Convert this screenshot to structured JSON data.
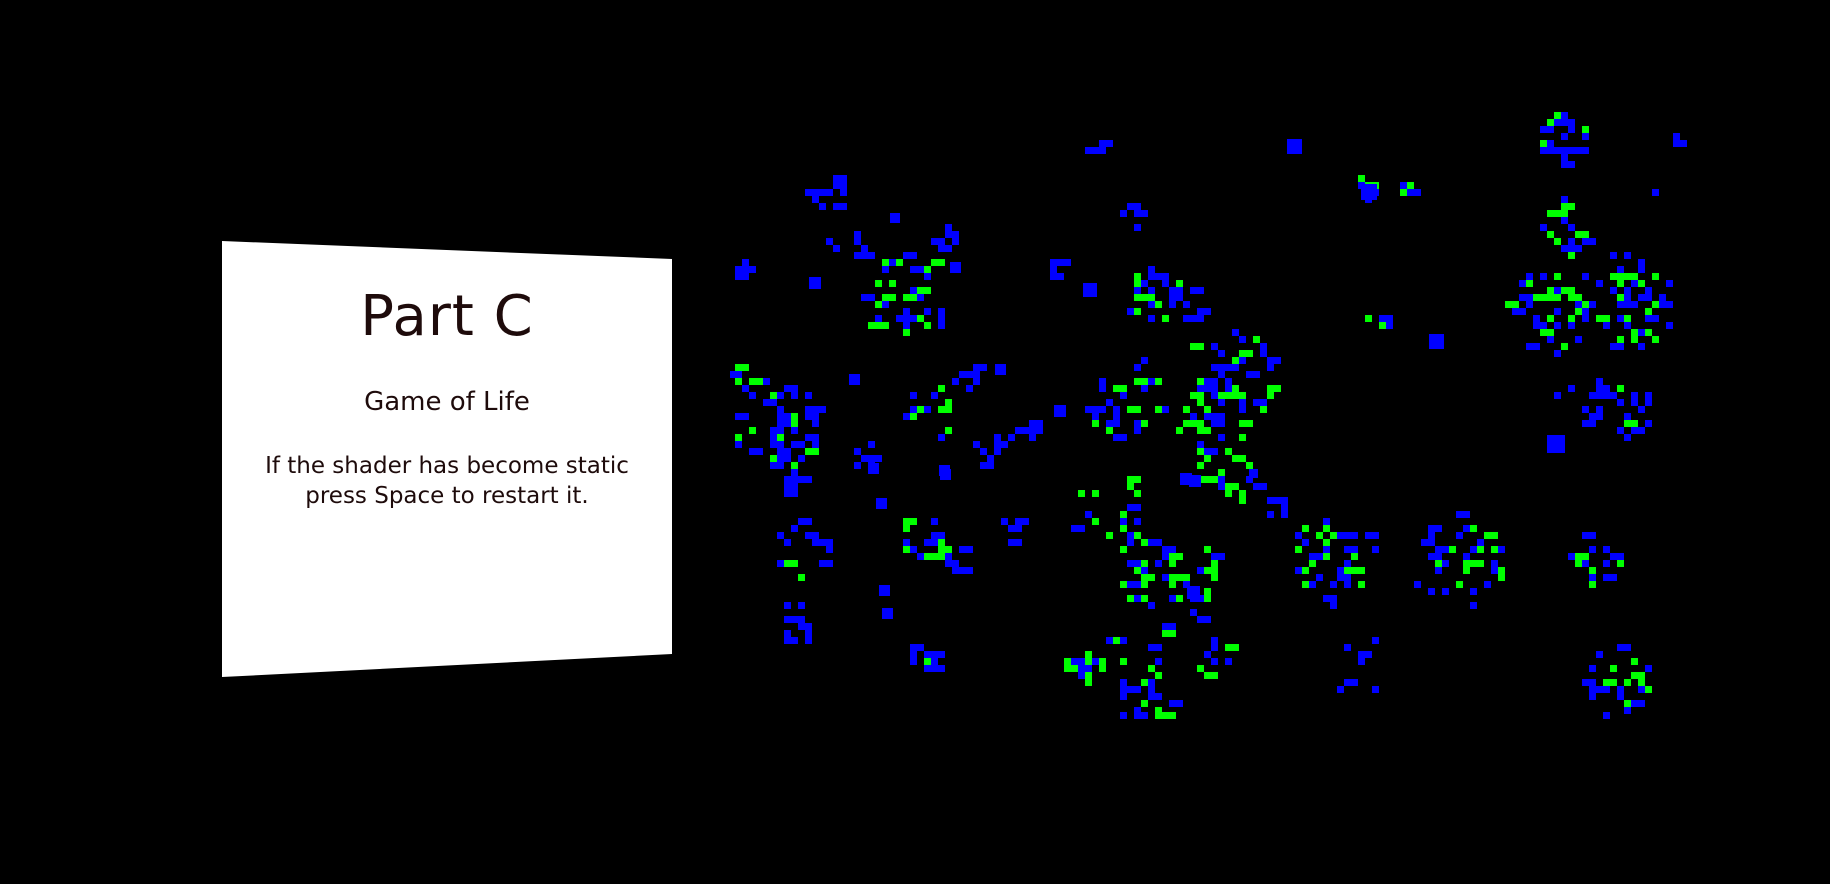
{
  "panel": {
    "title": "Part C",
    "subtitle": "Game of Life",
    "body": "If the shader has become static press Space to restart it."
  },
  "colors": {
    "background": "#000000",
    "panel": "#ffffff",
    "text": "#1e0b0b",
    "cell_blue": "#0000ff",
    "cell_green": "#00ff00"
  }
}
